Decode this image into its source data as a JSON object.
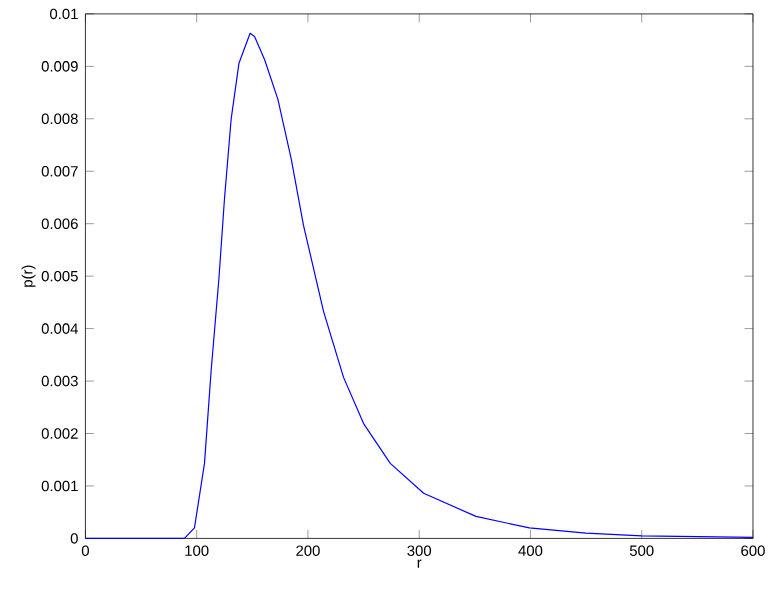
{
  "chart_data": {
    "type": "line",
    "xlabel": "r",
    "ylabel": "p(r)",
    "x": [
      0,
      50,
      89,
      98,
      107,
      113,
      120,
      125,
      131,
      138,
      148,
      152,
      161,
      173,
      185,
      196,
      214,
      232,
      250,
      274,
      304,
      351,
      399,
      450,
      500,
      600
    ],
    "series": [
      {
        "color": "#0000ff",
        "values": [
          0,
          0,
          0,
          0.0002,
          0.00143,
          0.0032,
          0.00496,
          0.00648,
          0.008,
          0.00906,
          0.00963,
          0.00957,
          0.00913,
          0.00837,
          0.00723,
          0.00597,
          0.00433,
          0.00307,
          0.00219,
          0.00143,
          0.00086,
          0.00042,
          0.0002,
          0.0001,
          5e-05,
          2e-05
        ]
      }
    ],
    "xlim": [
      0,
      600
    ],
    "ylim": [
      0,
      0.01
    ],
    "xticks": [
      0,
      100,
      200,
      300,
      400,
      500,
      600
    ],
    "yticks": [
      0,
      0.001,
      0.002,
      0.003,
      0.004,
      0.005,
      0.006,
      0.007,
      0.008,
      0.009,
      0.01
    ],
    "grid": false,
    "marker": "none",
    "line_style": "solid"
  }
}
